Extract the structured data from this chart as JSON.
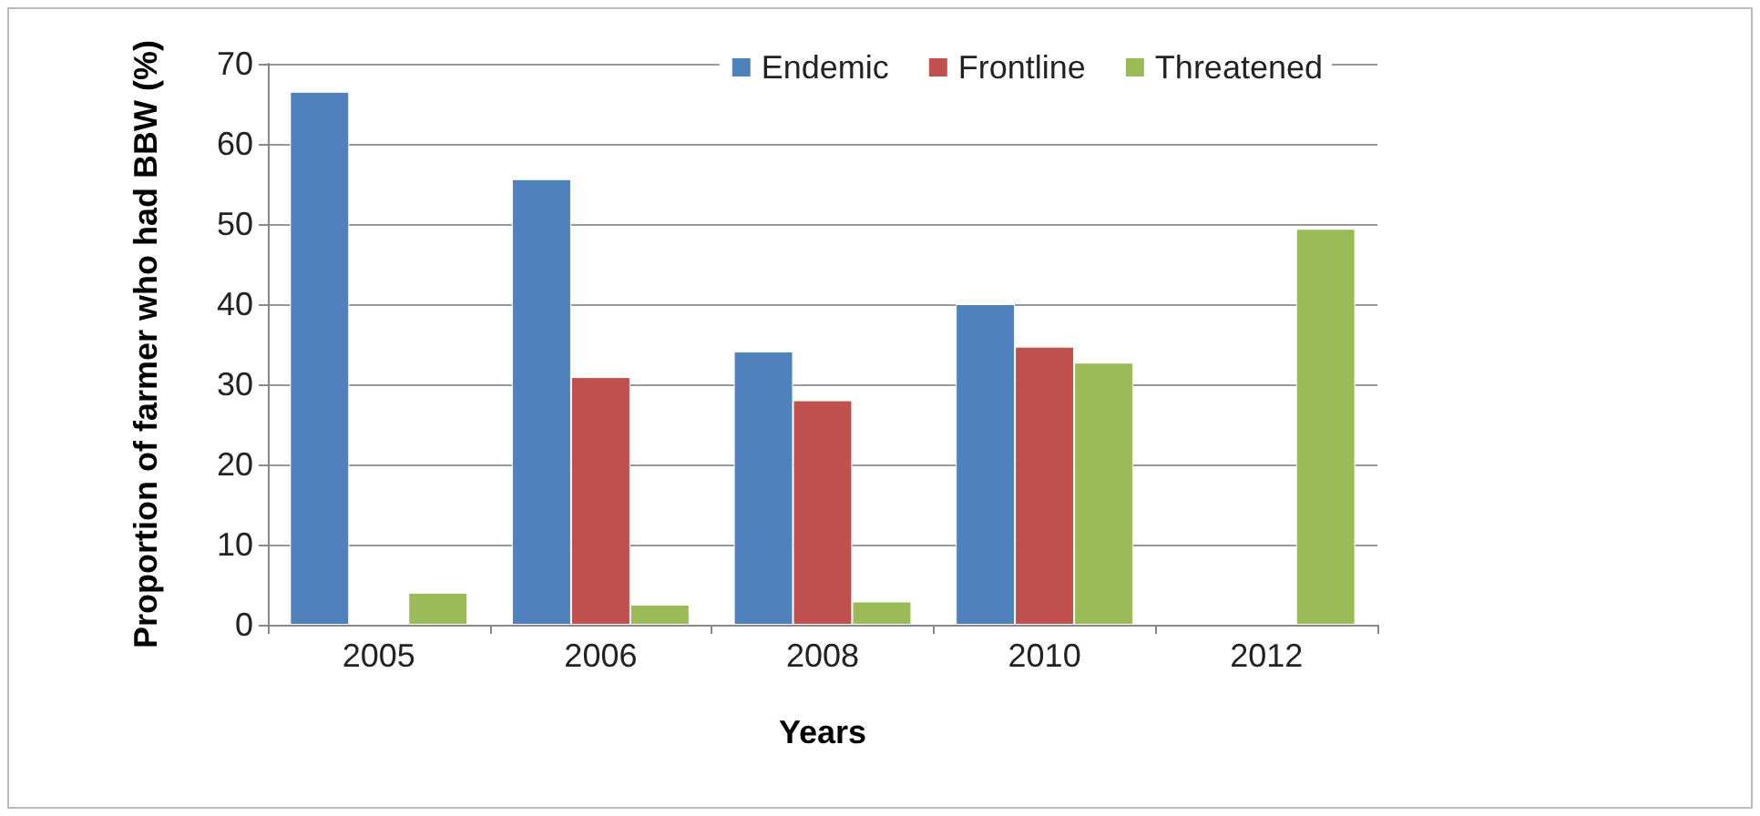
{
  "chart_data": {
    "type": "bar",
    "xlabel": "Years",
    "ylabel": "Proportion of farmer who had BBW (%)",
    "categories": [
      "2005",
      "2006",
      "2008",
      "2010",
      "2012"
    ],
    "series": [
      {
        "name": "Endemic",
        "color": "#4f81bd",
        "values": [
          66.5,
          55.6,
          34.1,
          40.0,
          null
        ]
      },
      {
        "name": "Frontline",
        "color": "#c0504d",
        "values": [
          null,
          30.9,
          28.0,
          34.7,
          null
        ]
      },
      {
        "name": "Threatened",
        "color": "#9bbb59",
        "values": [
          4.0,
          2.5,
          2.9,
          32.7,
          49.4
        ]
      }
    ],
    "ylim": [
      0,
      70
    ],
    "yticks": [
      0,
      10,
      20,
      30,
      40,
      50,
      60,
      70
    ],
    "grid": "y",
    "legend": "top right"
  }
}
